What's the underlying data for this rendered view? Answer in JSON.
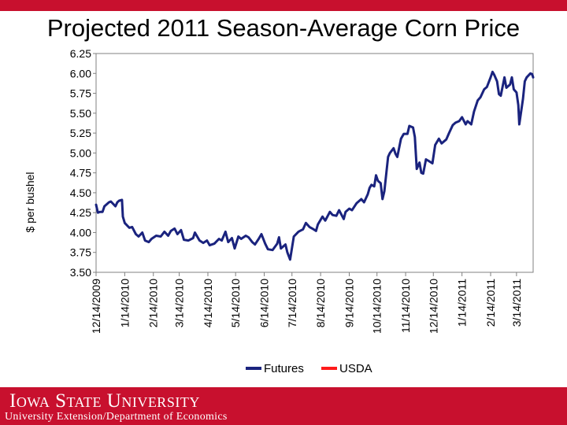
{
  "slide": {
    "title": "Projected 2011 Season-Average Corn Price"
  },
  "footer": {
    "logo_text": "Iowa State University",
    "subtitle": "University Extension/Department of Economics"
  },
  "colors": {
    "brand_red": "#c8102e",
    "futures_line": "#1a237e",
    "usda_line": "#ff1a1a"
  },
  "chart_data": {
    "type": "line",
    "title": "Projected 2011 Season-Average Corn Price",
    "ylabel": "$ per bushel",
    "xlabel": "",
    "ylim": [
      3.5,
      6.25
    ],
    "yticks": [
      "3.50",
      "3.75",
      "4.00",
      "4.25",
      "4.50",
      "4.75",
      "5.00",
      "5.25",
      "5.50",
      "5.75",
      "6.00",
      "6.25"
    ],
    "xlim": [
      "2009-12-14",
      "2011-04-01"
    ],
    "xticks": [
      {
        "date": "2009-12-14",
        "label": "12/14/2009"
      },
      {
        "date": "2010-01-14",
        "label": "1/14/2010"
      },
      {
        "date": "2010-02-14",
        "label": "2/14/2010"
      },
      {
        "date": "2010-03-14",
        "label": "3/14/2010"
      },
      {
        "date": "2010-04-14",
        "label": "4/14/2010"
      },
      {
        "date": "2010-05-14",
        "label": "5/14/2010"
      },
      {
        "date": "2010-06-14",
        "label": "6/14/2010"
      },
      {
        "date": "2010-07-14",
        "label": "7/14/2010"
      },
      {
        "date": "2010-08-14",
        "label": "8/14/2010"
      },
      {
        "date": "2010-09-14",
        "label": "9/14/2010"
      },
      {
        "date": "2010-10-14",
        "label": "10/14/2010"
      },
      {
        "date": "2010-11-14",
        "label": "11/14/2010"
      },
      {
        "date": "2010-12-14",
        "label": "12/14/2010"
      },
      {
        "date": "2011-01-14",
        "label": "1/14/2011"
      },
      {
        "date": "2011-02-14",
        "label": "2/14/2011"
      },
      {
        "date": "2011-03-14",
        "label": "3/14/2011"
      }
    ],
    "grid": false,
    "legend_position": "bottom",
    "series": [
      {
        "name": "Futures",
        "color": "#1a237e",
        "points": [
          [
            "2009-12-14",
            4.35
          ],
          [
            "2009-12-16",
            4.25
          ],
          [
            "2009-12-18",
            4.26
          ],
          [
            "2009-12-21",
            4.26
          ],
          [
            "2009-12-23",
            4.33
          ],
          [
            "2009-12-28",
            4.38
          ],
          [
            "2009-12-30",
            4.39
          ],
          [
            "2010-01-04",
            4.33
          ],
          [
            "2010-01-06",
            4.38
          ],
          [
            "2010-01-08",
            4.4
          ],
          [
            "2010-01-11",
            4.41
          ],
          [
            "2010-01-12",
            4.2
          ],
          [
            "2010-01-14",
            4.12
          ],
          [
            "2010-01-19",
            4.06
          ],
          [
            "2010-01-22",
            4.07
          ],
          [
            "2010-01-26",
            3.98
          ],
          [
            "2010-01-29",
            3.95
          ],
          [
            "2010-02-02",
            4.0
          ],
          [
            "2010-02-05",
            3.9
          ],
          [
            "2010-02-09",
            3.88
          ],
          [
            "2010-02-12",
            3.92
          ],
          [
            "2010-02-17",
            3.96
          ],
          [
            "2010-02-22",
            3.95
          ],
          [
            "2010-02-26",
            4.01
          ],
          [
            "2010-03-02",
            3.96
          ],
          [
            "2010-03-05",
            4.02
          ],
          [
            "2010-03-09",
            4.05
          ],
          [
            "2010-03-12",
            3.98
          ],
          [
            "2010-03-16",
            4.03
          ],
          [
            "2010-03-19",
            3.91
          ],
          [
            "2010-03-24",
            3.9
          ],
          [
            "2010-03-29",
            3.93
          ],
          [
            "2010-03-31",
            4.0
          ],
          [
            "2010-04-05",
            3.9
          ],
          [
            "2010-04-09",
            3.87
          ],
          [
            "2010-04-13",
            3.9
          ],
          [
            "2010-04-16",
            3.84
          ],
          [
            "2010-04-21",
            3.86
          ],
          [
            "2010-04-26",
            3.92
          ],
          [
            "2010-04-29",
            3.9
          ],
          [
            "2010-05-03",
            4.01
          ],
          [
            "2010-05-06",
            3.88
          ],
          [
            "2010-05-10",
            3.93
          ],
          [
            "2010-05-13",
            3.8
          ],
          [
            "2010-05-17",
            3.95
          ],
          [
            "2010-05-20",
            3.92
          ],
          [
            "2010-05-25",
            3.96
          ],
          [
            "2010-05-28",
            3.94
          ],
          [
            "2010-06-01",
            3.88
          ],
          [
            "2010-06-04",
            3.85
          ],
          [
            "2010-06-08",
            3.92
          ],
          [
            "2010-06-11",
            3.98
          ],
          [
            "2010-06-15",
            3.86
          ],
          [
            "2010-06-18",
            3.79
          ],
          [
            "2010-06-23",
            3.78
          ],
          [
            "2010-06-28",
            3.86
          ],
          [
            "2010-06-30",
            3.94
          ],
          [
            "2010-07-02",
            3.8
          ],
          [
            "2010-07-07",
            3.85
          ],
          [
            "2010-07-09",
            3.75
          ],
          [
            "2010-07-12",
            3.66
          ],
          [
            "2010-07-16",
            3.95
          ],
          [
            "2010-07-21",
            4.01
          ],
          [
            "2010-07-26",
            4.04
          ],
          [
            "2010-07-29",
            4.12
          ],
          [
            "2010-08-02",
            4.07
          ],
          [
            "2010-08-05",
            4.05
          ],
          [
            "2010-08-09",
            4.02
          ],
          [
            "2010-08-11",
            4.1
          ],
          [
            "2010-08-16",
            4.2
          ],
          [
            "2010-08-19",
            4.15
          ],
          [
            "2010-08-24",
            4.26
          ],
          [
            "2010-08-27",
            4.22
          ],
          [
            "2010-08-31",
            4.21
          ],
          [
            "2010-09-03",
            4.28
          ],
          [
            "2010-09-08",
            4.17
          ],
          [
            "2010-09-10",
            4.26
          ],
          [
            "2010-09-14",
            4.3
          ],
          [
            "2010-09-17",
            4.28
          ],
          [
            "2010-09-22",
            4.37
          ],
          [
            "2010-09-27",
            4.42
          ],
          [
            "2010-09-30",
            4.38
          ],
          [
            "2010-10-04",
            4.48
          ],
          [
            "2010-10-06",
            4.56
          ],
          [
            "2010-10-08",
            4.6
          ],
          [
            "2010-10-11",
            4.58
          ],
          [
            "2010-10-13",
            4.72
          ],
          [
            "2010-10-15",
            4.65
          ],
          [
            "2010-10-18",
            4.62
          ],
          [
            "2010-10-20",
            4.42
          ],
          [
            "2010-10-22",
            4.52
          ],
          [
            "2010-10-26",
            4.95
          ],
          [
            "2010-10-28",
            5.0
          ],
          [
            "2010-11-01",
            5.06
          ],
          [
            "2010-11-03",
            4.99
          ],
          [
            "2010-11-05",
            4.95
          ],
          [
            "2010-11-09",
            5.18
          ],
          [
            "2010-11-12",
            5.24
          ],
          [
            "2010-11-16",
            5.24
          ],
          [
            "2010-11-18",
            5.34
          ],
          [
            "2010-11-22",
            5.32
          ],
          [
            "2010-11-24",
            5.2
          ],
          [
            "2010-11-26",
            4.8
          ],
          [
            "2010-11-29",
            4.88
          ],
          [
            "2010-12-01",
            4.75
          ],
          [
            "2010-12-03",
            4.74
          ],
          [
            "2010-12-06",
            4.92
          ],
          [
            "2010-12-09",
            4.9
          ],
          [
            "2010-12-13",
            4.87
          ],
          [
            "2010-12-16",
            5.1
          ],
          [
            "2010-12-20",
            5.18
          ],
          [
            "2010-12-23",
            5.12
          ],
          [
            "2010-12-28",
            5.17
          ],
          [
            "2010-12-31",
            5.25
          ],
          [
            "2011-01-04",
            5.35
          ],
          [
            "2011-01-07",
            5.38
          ],
          [
            "2011-01-11",
            5.4
          ],
          [
            "2011-01-14",
            5.45
          ],
          [
            "2011-01-18",
            5.36
          ],
          [
            "2011-01-20",
            5.4
          ],
          [
            "2011-01-24",
            5.36
          ],
          [
            "2011-01-27",
            5.52
          ],
          [
            "2011-01-31",
            5.66
          ],
          [
            "2011-02-03",
            5.7
          ],
          [
            "2011-02-07",
            5.8
          ],
          [
            "2011-02-10",
            5.83
          ],
          [
            "2011-02-14",
            5.95
          ],
          [
            "2011-02-16",
            6.02
          ],
          [
            "2011-02-18",
            5.98
          ],
          [
            "2011-02-21",
            5.9
          ],
          [
            "2011-02-23",
            5.74
          ],
          [
            "2011-02-25",
            5.72
          ],
          [
            "2011-03-01",
            5.95
          ],
          [
            "2011-03-03",
            5.82
          ],
          [
            "2011-03-07",
            5.86
          ],
          [
            "2011-03-09",
            5.95
          ],
          [
            "2011-03-11",
            5.8
          ],
          [
            "2011-03-14",
            5.76
          ],
          [
            "2011-03-16",
            5.6
          ],
          [
            "2011-03-17",
            5.36
          ],
          [
            "2011-03-21",
            5.68
          ],
          [
            "2011-03-23",
            5.9
          ],
          [
            "2011-03-25",
            5.95
          ],
          [
            "2011-03-29",
            6.0
          ],
          [
            "2011-03-31",
            5.99
          ],
          [
            "2011-04-01",
            5.95
          ]
        ]
      },
      {
        "name": "USDA",
        "color": "#ff1a1a",
        "points": []
      }
    ]
  }
}
